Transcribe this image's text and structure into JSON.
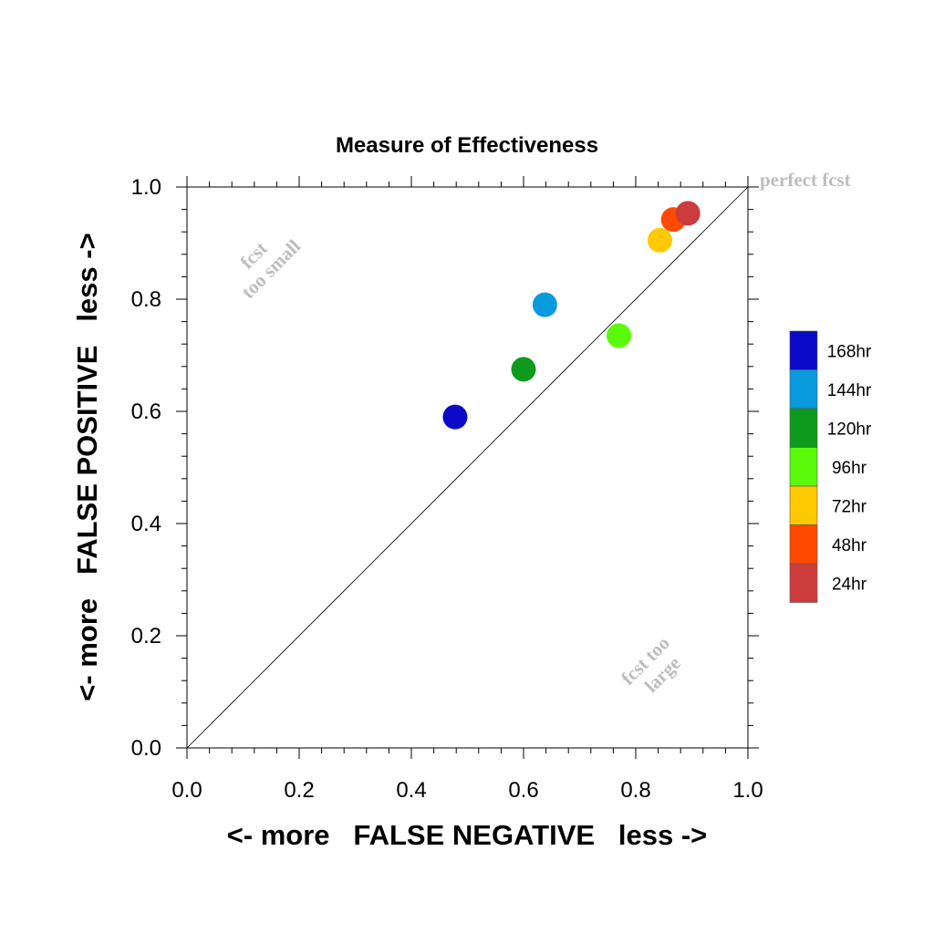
{
  "chart_data": {
    "type": "scatter",
    "title": "Measure of Effectiveness",
    "xlabel": "<- more   FALSE NEGATIVE   less ->",
    "ylabel": "<- more   FALSE POSITIVE   less ->",
    "xlim": [
      0.0,
      1.0
    ],
    "ylim": [
      0.0,
      1.0
    ],
    "xticks": [
      "0.0",
      "0.2",
      "0.4",
      "0.6",
      "0.8",
      "1.0"
    ],
    "yticks": [
      "0.0",
      "0.2",
      "0.4",
      "0.6",
      "0.8",
      "1.0"
    ],
    "grid": false,
    "reference_line": "diagonal y = x",
    "annotations": {
      "perfect": "perfect fcst",
      "too_small": [
        "fcst",
        "too small"
      ],
      "too_large": [
        "fcst too",
        "large"
      ]
    },
    "legend_position": "right",
    "series": [
      {
        "name": "168hr",
        "color": "#0a0ac8",
        "x": 0.478,
        "y": 0.59
      },
      {
        "name": "144hr",
        "color": "#0a9ade",
        "x": 0.638,
        "y": 0.79
      },
      {
        "name": "120hr",
        "color": "#0e9a1c",
        "x": 0.6,
        "y": 0.675
      },
      {
        "name": "96hr",
        "color": "#5afa0a",
        "x": 0.77,
        "y": 0.735
      },
      {
        "name": "72hr",
        "color": "#ffc800",
        "x": 0.843,
        "y": 0.905
      },
      {
        "name": "48hr",
        "color": "#ff4a00",
        "x": 0.867,
        "y": 0.942
      },
      {
        "name": "24hr",
        "color": "#cc3c3c",
        "x": 0.893,
        "y": 0.953
      }
    ]
  }
}
